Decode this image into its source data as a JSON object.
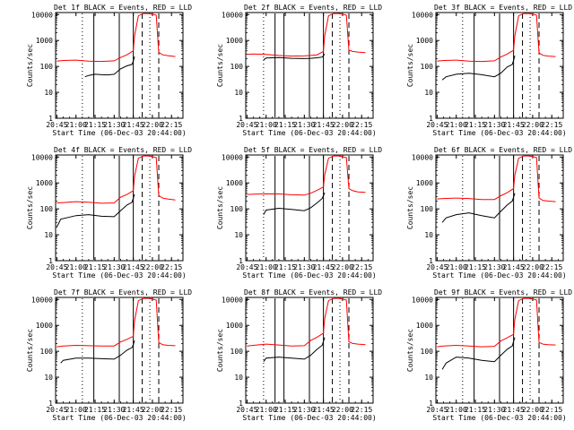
{
  "figure": {
    "ylabel": "Counts/sec",
    "xlabel": "Start Time (06-Dec-03 20:44:00)",
    "xtick_labels": [
      "20:45",
      "21:00",
      "21:15",
      "21:30",
      "21:45",
      "22:00",
      "22:15"
    ],
    "ytick_labels": [
      "1",
      "10",
      "100",
      "1000",
      "10000"
    ],
    "colors": {
      "events": "#000000",
      "lld": "#ff0000",
      "axes": "#000000",
      "background": "#ffffff"
    }
  },
  "chart_data": [
    {
      "type": "line",
      "title": "Det 1f BLACK = Events, RED = LLD",
      "xlabel": "Start Time (06-Dec-03 20:44:00)",
      "ylabel": "Counts/sec",
      "xlim": [
        "20:44",
        "22:24"
      ],
      "ylim": [
        1,
        12000
      ],
      "yscale": "log",
      "grid": false,
      "series": [
        {
          "name": "Events",
          "color": "#000000",
          "x": [
            "21:07",
            "21:10",
            "21:15",
            "21:20",
            "21:25",
            "21:30",
            "21:35",
            "21:40",
            "21:44",
            "21:45",
            "21:46"
          ],
          "y": [
            40,
            45,
            50,
            48,
            47,
            50,
            80,
            105,
            120,
            160,
            240
          ]
        },
        {
          "name": "LLD",
          "color": "#ff0000",
          "x": [
            "20:45",
            "20:50",
            "21:00",
            "21:10",
            "21:20",
            "21:30",
            "21:35",
            "21:40",
            "21:45",
            "21:46",
            "21:49",
            "21:53",
            "21:58",
            "22:03",
            "22:05",
            "22:08",
            "22:12",
            "22:18"
          ],
          "y": [
            160,
            170,
            175,
            160,
            155,
            165,
            220,
            280,
            400,
            1500,
            9000,
            11000,
            11000,
            9500,
            350,
            280,
            260,
            240
          ]
        }
      ],
      "vlines_solid": [
        "21:14",
        "21:34",
        "21:45"
      ],
      "vlines_dashed": [
        "21:52",
        "22:05"
      ],
      "vlines_dotted": [
        "21:05",
        "21:58"
      ]
    },
    {
      "type": "line",
      "title": "Det 2f BLACK = Events, RED = LLD",
      "xlabel": "Start Time (06-Dec-03 20:44:00)",
      "ylabel": "Counts/sec",
      "xlim": [
        "20:44",
        "22:24"
      ],
      "ylim": [
        1,
        12000
      ],
      "yscale": "log",
      "grid": false,
      "series": [
        {
          "name": "Events",
          "color": "#000000",
          "x": [
            "20:58",
            "21:00",
            "21:10",
            "21:20",
            "21:30",
            "21:35",
            "21:40",
            "21:44",
            "21:45",
            "21:46"
          ],
          "y": [
            180,
            210,
            220,
            205,
            200,
            205,
            215,
            230,
            260,
            300
          ]
        },
        {
          "name": "LLD",
          "color": "#ff0000",
          "x": [
            "20:45",
            "20:50",
            "21:00",
            "21:10",
            "21:20",
            "21:30",
            "21:35",
            "21:40",
            "21:45",
            "21:46",
            "21:49",
            "21:53",
            "21:58",
            "22:03",
            "22:05",
            "22:08",
            "22:12",
            "22:18"
          ],
          "y": [
            290,
            300,
            290,
            265,
            250,
            255,
            265,
            280,
            380,
            1500,
            9000,
            11000,
            11000,
            9500,
            420,
            380,
            360,
            340
          ]
        }
      ],
      "vlines_solid": [
        "21:07",
        "21:14",
        "21:34",
        "21:45"
      ],
      "vlines_dashed": [
        "21:52",
        "22:05"
      ],
      "vlines_dotted": [
        "20:58",
        "21:58"
      ]
    },
    {
      "type": "line",
      "title": "Det 3f BLACK = Events, RED = LLD",
      "xlabel": "Start Time (06-Dec-03 20:44:00)",
      "ylabel": "Counts/sec",
      "xlim": [
        "20:44",
        "22:24"
      ],
      "ylim": [
        1,
        12000
      ],
      "yscale": "log",
      "grid": false,
      "series": [
        {
          "name": "Events",
          "color": "#000000",
          "x": [
            "20:49",
            "20:52",
            "21:00",
            "21:10",
            "21:20",
            "21:30",
            "21:35",
            "21:40",
            "21:44",
            "21:45",
            "21:46"
          ],
          "y": [
            30,
            40,
            50,
            55,
            48,
            40,
            55,
            95,
            120,
            170,
            260
          ]
        },
        {
          "name": "LLD",
          "color": "#ff0000",
          "x": [
            "20:45",
            "20:50",
            "21:00",
            "21:10",
            "21:20",
            "21:30",
            "21:35",
            "21:40",
            "21:45",
            "21:46",
            "21:49",
            "21:53",
            "21:58",
            "22:03",
            "22:05",
            "22:08",
            "22:12",
            "22:18"
          ],
          "y": [
            160,
            170,
            175,
            160,
            155,
            165,
            230,
            300,
            420,
            1500,
            9000,
            11000,
            11000,
            9500,
            330,
            270,
            250,
            240
          ]
        }
      ],
      "vlines_solid": [
        "21:14",
        "21:34",
        "21:45"
      ],
      "vlines_dashed": [
        "21:52",
        "22:05"
      ],
      "vlines_dotted": [
        "21:05",
        "21:58"
      ]
    },
    {
      "type": "line",
      "title": "Det 4f BLACK = Events, RED = LLD",
      "xlabel": "Start Time (06-Dec-03 20:44:00)",
      "ylabel": "Counts/sec",
      "xlim": [
        "20:44",
        "22:24"
      ],
      "ylim": [
        1,
        12000
      ],
      "yscale": "log",
      "grid": false,
      "series": [
        {
          "name": "Events",
          "color": "#000000",
          "x": [
            "20:45",
            "20:48",
            "21:00",
            "21:10",
            "21:20",
            "21:30",
            "21:35",
            "21:40",
            "21:44",
            "21:45",
            "21:46"
          ],
          "y": [
            20,
            40,
            55,
            60,
            52,
            50,
            85,
            140,
            180,
            260,
            360
          ]
        },
        {
          "name": "LLD",
          "color": "#ff0000",
          "x": [
            "20:45",
            "20:50",
            "21:00",
            "21:10",
            "21:20",
            "21:30",
            "21:35",
            "21:40",
            "21:45",
            "21:46",
            "21:49",
            "21:53",
            "21:58",
            "22:03",
            "22:05",
            "22:08",
            "22:12",
            "22:18"
          ],
          "y": [
            170,
            175,
            190,
            180,
            165,
            170,
            280,
            360,
            500,
            1800,
            9000,
            11000,
            11000,
            9500,
            330,
            260,
            240,
            220
          ]
        }
      ],
      "vlines_solid": [
        "21:14",
        "21:34",
        "21:45"
      ],
      "vlines_dashed": [
        "21:52",
        "22:05"
      ],
      "vlines_dotted": [
        "21:05",
        "21:58"
      ]
    },
    {
      "type": "line",
      "title": "Det 5f BLACK = Events, RED = LLD",
      "xlabel": "Start Time (06-Dec-03 20:44:00)",
      "ylabel": "Counts/sec",
      "xlim": [
        "20:44",
        "22:24"
      ],
      "ylim": [
        1,
        12000
      ],
      "yscale": "log",
      "grid": false,
      "series": [
        {
          "name": "Events",
          "color": "#000000",
          "x": [
            "20:58",
            "21:00",
            "21:10",
            "21:20",
            "21:30",
            "21:35",
            "21:40",
            "21:44",
            "21:45",
            "21:46"
          ],
          "y": [
            60,
            90,
            105,
            95,
            85,
            110,
            170,
            250,
            320,
            420
          ]
        },
        {
          "name": "LLD",
          "color": "#ff0000",
          "x": [
            "20:45",
            "20:50",
            "21:00",
            "21:10",
            "21:20",
            "21:30",
            "21:35",
            "21:40",
            "21:45",
            "21:46",
            "21:49",
            "21:53",
            "21:58",
            "22:03",
            "22:05",
            "22:08",
            "22:12",
            "22:18"
          ],
          "y": [
            360,
            370,
            380,
            375,
            350,
            340,
            400,
            520,
            700,
            2000,
            9000,
            11000,
            11000,
            9500,
            600,
            500,
            450,
            430
          ]
        }
      ],
      "vlines_solid": [
        "21:07",
        "21:14",
        "21:34",
        "21:45"
      ],
      "vlines_dashed": [
        "21:52",
        "22:05"
      ],
      "vlines_dotted": [
        "20:58",
        "21:58"
      ]
    },
    {
      "type": "line",
      "title": "Det 6f BLACK = Events, RED = LLD",
      "xlabel": "Start Time (06-Dec-03 20:44:00)",
      "ylabel": "Counts/sec",
      "xlim": [
        "20:44",
        "22:24"
      ],
      "ylim": [
        1,
        12000
      ],
      "yscale": "log",
      "grid": false,
      "series": [
        {
          "name": "Events",
          "color": "#000000",
          "x": [
            "20:49",
            "20:52",
            "21:00",
            "21:10",
            "21:20",
            "21:30",
            "21:35",
            "21:40",
            "21:44",
            "21:45",
            "21:46"
          ],
          "y": [
            30,
            45,
            60,
            70,
            55,
            45,
            80,
            140,
            200,
            280,
            400
          ]
        },
        {
          "name": "LLD",
          "color": "#ff0000",
          "x": [
            "20:45",
            "20:50",
            "21:00",
            "21:10",
            "21:20",
            "21:30",
            "21:35",
            "21:40",
            "21:45",
            "21:46",
            "21:49",
            "21:53",
            "21:58",
            "22:03",
            "22:05",
            "22:08",
            "22:12",
            "22:18"
          ],
          "y": [
            240,
            250,
            260,
            250,
            230,
            230,
            320,
            420,
            600,
            2000,
            9000,
            11000,
            11000,
            9500,
            260,
            210,
            200,
            190
          ]
        }
      ],
      "vlines_solid": [
        "21:14",
        "21:34",
        "21:45"
      ],
      "vlines_dashed": [
        "21:52",
        "22:05"
      ],
      "vlines_dotted": [
        "21:05",
        "21:58"
      ]
    },
    {
      "type": "line",
      "title": "Det 7f BLACK = Events, RED = LLD",
      "xlabel": "Start Time (06-Dec-03 20:44:00)",
      "ylabel": "Counts/sec",
      "xlim": [
        "20:44",
        "22:24"
      ],
      "ylim": [
        1,
        12000
      ],
      "yscale": "log",
      "grid": false,
      "series": [
        {
          "name": "Events",
          "color": "#000000",
          "x": [
            "20:48",
            "20:50",
            "21:00",
            "21:10",
            "21:20",
            "21:30",
            "21:35",
            "21:40",
            "21:44",
            "21:45",
            "21:46"
          ],
          "y": [
            35,
            45,
            55,
            55,
            52,
            50,
            70,
            110,
            140,
            180,
            260
          ]
        },
        {
          "name": "LLD",
          "color": "#ff0000",
          "x": [
            "20:45",
            "20:50",
            "21:00",
            "21:10",
            "21:20",
            "21:30",
            "21:35",
            "21:40",
            "21:45",
            "21:46",
            "21:49",
            "21:53",
            "21:58",
            "22:03",
            "22:05",
            "22:08",
            "22:12",
            "22:18"
          ],
          "y": [
            150,
            160,
            170,
            165,
            160,
            160,
            230,
            290,
            380,
            1500,
            9000,
            11000,
            11000,
            9500,
            220,
            180,
            170,
            165
          ]
        }
      ],
      "vlines_solid": [
        "21:14",
        "21:34",
        "21:45"
      ],
      "vlines_dashed": [
        "21:52",
        "22:05"
      ],
      "vlines_dotted": [
        "21:05",
        "21:58"
      ]
    },
    {
      "type": "line",
      "title": "Det 8f BLACK = Events, RED = LLD",
      "xlabel": "Start Time (06-Dec-03 20:44:00)",
      "ylabel": "Counts/sec",
      "xlim": [
        "20:44",
        "22:24"
      ],
      "ylim": [
        1,
        12000
      ],
      "yscale": "log",
      "grid": false,
      "series": [
        {
          "name": "Events",
          "color": "#000000",
          "x": [
            "20:58",
            "21:00",
            "21:10",
            "21:20",
            "21:30",
            "21:35",
            "21:40",
            "21:44",
            "21:45",
            "21:46"
          ],
          "y": [
            40,
            55,
            60,
            55,
            50,
            70,
            120,
            170,
            240,
            340
          ]
        },
        {
          "name": "LLD",
          "color": "#ff0000",
          "x": [
            "20:45",
            "20:50",
            "21:00",
            "21:10",
            "21:20",
            "21:30",
            "21:35",
            "21:40",
            "21:45",
            "21:46",
            "21:49",
            "21:53",
            "21:58",
            "22:03",
            "22:05",
            "22:08",
            "22:12",
            "22:18"
          ],
          "y": [
            160,
            170,
            190,
            175,
            160,
            165,
            260,
            350,
            500,
            1800,
            9000,
            11000,
            11000,
            9500,
            230,
            200,
            190,
            180
          ]
        }
      ],
      "vlines_solid": [
        "21:07",
        "21:14",
        "21:34",
        "21:45"
      ],
      "vlines_dashed": [
        "21:52",
        "22:05"
      ],
      "vlines_dotted": [
        "20:58",
        "21:58"
      ]
    },
    {
      "type": "line",
      "title": "Det 9f BLACK = Events, RED = LLD",
      "xlabel": "Start Time (06-Dec-03 20:44:00)",
      "ylabel": "Counts/sec",
      "xlim": [
        "20:44",
        "22:24"
      ],
      "ylim": [
        1,
        12000
      ],
      "yscale": "log",
      "grid": false,
      "series": [
        {
          "name": "Events",
          "color": "#000000",
          "x": [
            "20:49",
            "20:52",
            "21:00",
            "21:10",
            "21:20",
            "21:30",
            "21:35",
            "21:40",
            "21:44",
            "21:45",
            "21:46"
          ],
          "y": [
            20,
            35,
            60,
            55,
            45,
            40,
            70,
            120,
            160,
            240,
            340
          ]
        },
        {
          "name": "LLD",
          "color": "#ff0000",
          "x": [
            "20:45",
            "20:50",
            "21:00",
            "21:10",
            "21:20",
            "21:30",
            "21:35",
            "21:40",
            "21:45",
            "21:46",
            "21:49",
            "21:53",
            "21:58",
            "22:03",
            "22:05",
            "22:08",
            "22:12",
            "22:18"
          ],
          "y": [
            150,
            160,
            170,
            160,
            150,
            155,
            250,
            330,
            450,
            1700,
            9000,
            11000,
            11000,
            9500,
            220,
            190,
            180,
            175
          ]
        }
      ],
      "vlines_solid": [
        "21:14",
        "21:34",
        "21:45"
      ],
      "vlines_dashed": [
        "21:52",
        "22:05"
      ],
      "vlines_dotted": [
        "21:05",
        "21:58"
      ]
    }
  ]
}
